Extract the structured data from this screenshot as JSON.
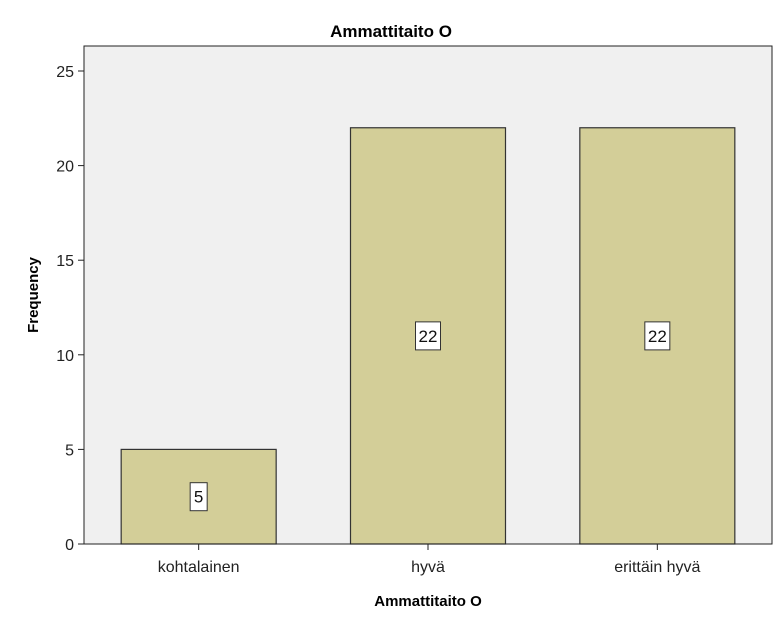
{
  "chart_data": {
    "type": "bar",
    "title": "Ammattitaito O",
    "xlabel": "Ammattitaito O",
    "ylabel": "Frequency",
    "categories": [
      "kohtalainen",
      "hyvä",
      "erittäin hyvä"
    ],
    "values": [
      5,
      22,
      22
    ],
    "data_labels": [
      "5",
      "22",
      "22"
    ],
    "ylim": [
      0,
      25
    ],
    "yticks": [
      0,
      5,
      10,
      15,
      20,
      25
    ],
    "ytick_labels": [
      "0",
      "5",
      "10",
      "15",
      "20",
      "25"
    ],
    "grid": false,
    "legend": "none",
    "colors": {
      "bar_fill": "#d3ce98",
      "bar_stroke": "#333333",
      "plot_background": "#f0f0f0",
      "axis": "#222222"
    }
  }
}
